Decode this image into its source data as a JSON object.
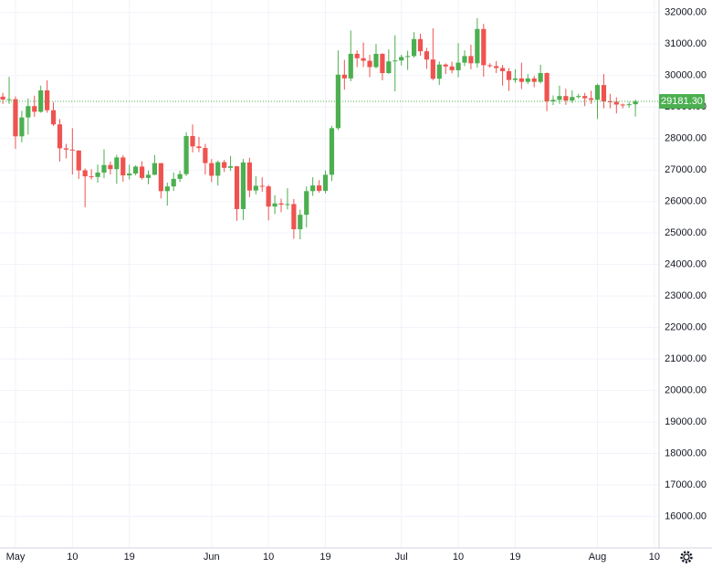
{
  "chart_data": {
    "type": "candlestick",
    "categories": [
      null,
      null,
      "May",
      null,
      null,
      null,
      null,
      null,
      null,
      null,
      null,
      "10",
      null,
      null,
      null,
      null,
      null,
      null,
      null,
      null,
      "19",
      null,
      null,
      null,
      null,
      null,
      null,
      null,
      null,
      null,
      null,
      null,
      null,
      "Jun",
      null,
      null,
      null,
      null,
      null,
      null,
      null,
      null,
      "10",
      null,
      null,
      null,
      null,
      null,
      null,
      null,
      null,
      "19",
      null,
      null,
      null,
      null,
      null,
      null,
      null,
      null,
      null,
      null,
      null,
      "Jul",
      null,
      null,
      null,
      null,
      null,
      null,
      null,
      null,
      "10",
      null,
      null,
      null,
      null,
      null,
      null,
      null,
      null,
      "19",
      null,
      null,
      null,
      null,
      null,
      null,
      null,
      null,
      null,
      null,
      null,
      null,
      "Aug",
      null,
      null,
      null,
      null,
      null,
      null,
      null,
      null,
      "10"
    ],
    "open": [
      29330,
      29240,
      29250,
      28070,
      28670,
      29030,
      28850,
      29530,
      28900,
      28450,
      27690,
      27650,
      27620,
      26990,
      26800,
      26780,
      26920,
      27160,
      27030,
      27400,
      26830,
      26890,
      27110,
      26750,
      26850,
      27220,
      26330,
      26480,
      26720,
      26870,
      28080,
      27750,
      27700,
      27220,
      26820,
      27250,
      27070,
      27120,
      25760,
      27240,
      26350,
      26500,
      26480,
      25840,
      25940,
      25900,
      25920,
      25120,
      25580,
      26330,
      26510,
      26340,
      26850,
      28330,
      30030,
      29910,
      30690,
      30550,
      30470,
      30270,
      30690,
      30080,
      30450,
      30480,
      30590,
      30620,
      31160,
      30770,
      30510,
      29900,
      30350,
      30290,
      30170,
      30410,
      30620,
      30390,
      31480,
      30330,
      30300,
      30240,
      30140,
      29860,
      29910,
      29800,
      29910,
      29800,
      30080,
      29180,
      29230,
      29350,
      29210,
      29320,
      29350,
      29280,
      29230,
      29700,
      29180,
      29170,
      29080,
      29060,
      29090,
      null,
      null,
      null
    ],
    "high": [
      29450,
      29960,
      29340,
      28880,
      29270,
      29360,
      29680,
      29850,
      29160,
      28620,
      27830,
      28330,
      27630,
      27050,
      27030,
      27170,
      27660,
      27270,
      27480,
      27470,
      27170,
      27150,
      27280,
      26980,
      27480,
      27220,
      26600,
      26920,
      26980,
      28200,
      28450,
      28050,
      27830,
      27350,
      27300,
      27320,
      27450,
      27130,
      27350,
      27390,
      26800,
      26770,
      26530,
      26200,
      26090,
      26420,
      26080,
      25740,
      26480,
      26770,
      26680,
      26990,
      28400,
      30800,
      30500,
      31430,
      30800,
      31050,
      30660,
      31000,
      30710,
      30830,
      31280,
      30660,
      30790,
      31380,
      31330,
      30880,
      31500,
      30450,
      30390,
      30440,
      31030,
      30800,
      30980,
      31820,
      31640,
      30390,
      30460,
      30340,
      30240,
      30200,
      30410,
      30050,
      29990,
      30340,
      30100,
      29370,
      29680,
      29580,
      29530,
      29420,
      29450,
      29520,
      29740,
      30050,
      29420,
      29310,
      29110,
      29170,
      29240,
      null,
      null,
      null
    ],
    "low": [
      29100,
      29100,
      27670,
      27880,
      28130,
      28690,
      28820,
      28820,
      28400,
      27270,
      27370,
      26860,
      26720,
      25820,
      26700,
      26600,
      26740,
      26860,
      26560,
      26630,
      26700,
      26830,
      26700,
      26550,
      26840,
      26100,
      25870,
      26340,
      26620,
      26810,
      27560,
      27570,
      26860,
      26620,
      26510,
      26940,
      26970,
      25390,
      25410,
      26140,
      26230,
      26310,
      25400,
      25600,
      25660,
      25750,
      24820,
      24800,
      25180,
      26180,
      26280,
      26260,
      26650,
      28270,
      29550,
      29820,
      30270,
      30270,
      29950,
      30230,
      29850,
      30050,
      29500,
      30320,
      30180,
      30570,
      30630,
      30210,
      29850,
      29700,
      30050,
      30070,
      29950,
      30300,
      30200,
      30250,
      29970,
      30250,
      30080,
      29680,
      29510,
      29770,
      29570,
      29730,
      29630,
      29750,
      28870,
      29060,
      29100,
      29070,
      29130,
      29270,
      29030,
      29100,
      28620,
      28960,
      28960,
      28800,
      28960,
      28980,
      28700,
      null,
      null,
      null
    ],
    "close": [
      29240,
      29250,
      28070,
      28670,
      29030,
      28850,
      29530,
      28900,
      28450,
      27690,
      27650,
      27620,
      26990,
      26800,
      26780,
      26920,
      27160,
      27030,
      27400,
      26830,
      26890,
      27110,
      26750,
      26850,
      27220,
      26330,
      26480,
      26720,
      26870,
      28080,
      27750,
      27700,
      27220,
      26820,
      27250,
      27070,
      27120,
      25760,
      27240,
      26350,
      26500,
      26480,
      25840,
      25940,
      25900,
      25920,
      25120,
      25580,
      26330,
      26510,
      26340,
      26850,
      28330,
      30030,
      29910,
      30690,
      30550,
      30470,
      30270,
      30690,
      30080,
      30450,
      30480,
      30590,
      30620,
      31160,
      30770,
      30510,
      29900,
      30350,
      30290,
      30170,
      30410,
      30620,
      30390,
      31480,
      30330,
      30300,
      30240,
      30140,
      29860,
      29910,
      29800,
      29910,
      29800,
      30080,
      29180,
      29230,
      29350,
      29210,
      29320,
      29350,
      29280,
      29230,
      29700,
      29180,
      29170,
      29080,
      29060,
      29090,
      29181.3,
      null,
      null,
      null
    ],
    "last_price_label": "29181.30",
    "up_color": "#4caf50",
    "down_color": "#ef5350",
    "last_color": "#4caf50",
    "ylim": [
      15000,
      32400
    ],
    "yticks": [
      {
        "value": 16000,
        "label": "16000.00"
      },
      {
        "value": 17000,
        "label": "17000.00"
      },
      {
        "value": 18000,
        "label": "18000.00"
      },
      {
        "value": 19000,
        "label": "19000.00"
      },
      {
        "value": 20000,
        "label": "20000.00"
      },
      {
        "value": 21000,
        "label": "21000.00"
      },
      {
        "value": 22000,
        "label": "22000.00"
      },
      {
        "value": 23000,
        "label": "23000.00"
      },
      {
        "value": 24000,
        "label": "24000.00"
      },
      {
        "value": 25000,
        "label": "25000.00"
      },
      {
        "value": 26000,
        "label": "26000.00"
      },
      {
        "value": 27000,
        "label": "27000.00"
      },
      {
        "value": 28000,
        "label": "28000.00"
      },
      {
        "value": 29000,
        "label": "29000.00"
      },
      {
        "value": 30000,
        "label": "30000.00"
      },
      {
        "value": 31000,
        "label": "31000.00"
      },
      {
        "value": 32000,
        "label": "32000.00"
      }
    ],
    "grid": true
  }
}
